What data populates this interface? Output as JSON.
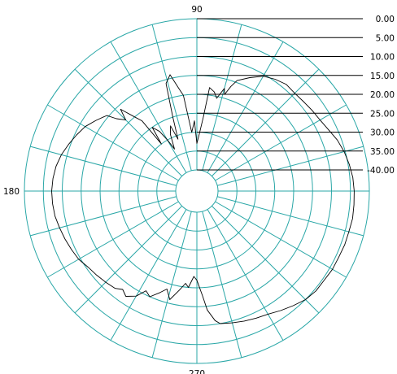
{
  "chart_data": {
    "type": "polar",
    "title": "",
    "radial_scale": {
      "ticks": [
        "0.00",
        "5.00",
        "10.00",
        "15.00",
        "20.00",
        "25.00",
        "30.00",
        "35.00",
        "-40.00"
      ],
      "levels": [
        0,
        -5,
        -10,
        -15,
        -20,
        -25,
        -30,
        -35,
        -40
      ],
      "outer": 0,
      "center": -40
    },
    "angle_labels": [
      {
        "angle": 90,
        "text": "90"
      },
      {
        "angle": 180,
        "text": "180"
      },
      {
        "angle": 270,
        "text": "270"
      }
    ],
    "angular_grid_step_deg": 15,
    "grid": true,
    "series": [
      {
        "points": [
          {
            "angle": 0,
            "value": -4.0
          },
          {
            "angle": 5,
            "value": -4.2
          },
          {
            "angle": 10,
            "value": -4.7
          },
          {
            "angle": 15,
            "value": -5.3
          },
          {
            "angle": 20,
            "value": -6.1
          },
          {
            "angle": 25,
            "value": -7.2
          },
          {
            "angle": 30,
            "value": -8.0
          },
          {
            "angle": 35,
            "value": -8.4
          },
          {
            "angle": 40,
            "value": -8.8
          },
          {
            "angle": 45,
            "value": -9.0
          },
          {
            "angle": 50,
            "value": -8.8
          },
          {
            "angle": 55,
            "value": -9.5
          },
          {
            "angle": 60,
            "value": -10.5
          },
          {
            "angle": 65,
            "value": -12.5
          },
          {
            "angle": 70,
            "value": -14.5
          },
          {
            "angle": 72,
            "value": -16.5
          },
          {
            "angle": 74,
            "value": -19.0
          },
          {
            "angle": 75,
            "value": -17.5
          },
          {
            "angle": 78,
            "value": -20.5
          },
          {
            "angle": 80,
            "value": -19.0
          },
          {
            "angle": 83,
            "value": -18.0
          },
          {
            "angle": 85,
            "value": -26.0
          },
          {
            "angle": 88,
            "value": -31.0
          },
          {
            "angle": 90,
            "value": -33.0
          },
          {
            "angle": 92,
            "value": -27.0
          },
          {
            "angle": 95,
            "value": -30.0
          },
          {
            "angle": 98,
            "value": -20.0
          },
          {
            "angle": 100,
            "value": -18.0
          },
          {
            "angle": 103,
            "value": -14.0
          },
          {
            "angle": 106,
            "value": -16.0
          },
          {
            "angle": 108,
            "value": -25.0
          },
          {
            "angle": 110,
            "value": -31.0
          },
          {
            "angle": 112,
            "value": -27.0
          },
          {
            "angle": 115,
            "value": -29.0
          },
          {
            "angle": 118,
            "value": -33.0
          },
          {
            "angle": 120,
            "value": -30.0
          },
          {
            "angle": 122,
            "value": -27.0
          },
          {
            "angle": 125,
            "value": -25.0
          },
          {
            "angle": 127,
            "value": -30.0
          },
          {
            "angle": 128,
            "value": -22.0
          },
          {
            "angle": 130,
            "value": -20.0
          },
          {
            "angle": 133,
            "value": -16.0
          },
          {
            "angle": 135,
            "value": -19.0
          },
          {
            "angle": 138,
            "value": -17.0
          },
          {
            "angle": 140,
            "value": -14.5
          },
          {
            "angle": 145,
            "value": -13.0
          },
          {
            "angle": 150,
            "value": -11.5
          },
          {
            "angle": 155,
            "value": -10.5
          },
          {
            "angle": 160,
            "value": -9.5
          },
          {
            "angle": 165,
            "value": -8.5
          },
          {
            "angle": 170,
            "value": -7.8
          },
          {
            "angle": 175,
            "value": -7.4
          },
          {
            "angle": 180,
            "value": -7.2
          },
          {
            "angle": 185,
            "value": -7.3
          },
          {
            "angle": 190,
            "value": -7.5
          },
          {
            "angle": 195,
            "value": -8.0
          },
          {
            "angle": 200,
            "value": -8.5
          },
          {
            "angle": 205,
            "value": -9.0
          },
          {
            "angle": 210,
            "value": -9.5
          },
          {
            "angle": 215,
            "value": -10.5
          },
          {
            "angle": 220,
            "value": -11.0
          },
          {
            "angle": 225,
            "value": -11.5
          },
          {
            "angle": 230,
            "value": -12.0
          },
          {
            "angle": 233,
            "value": -13.0
          },
          {
            "angle": 236,
            "value": -12.0
          },
          {
            "angle": 240,
            "value": -13.5
          },
          {
            "angle": 243,
            "value": -16.0
          },
          {
            "angle": 246,
            "value": -15.0
          },
          {
            "angle": 250,
            "value": -17.0
          },
          {
            "angle": 253,
            "value": -18.5
          },
          {
            "angle": 256,
            "value": -16.0
          },
          {
            "angle": 260,
            "value": -19.0
          },
          {
            "angle": 263,
            "value": -21.0
          },
          {
            "angle": 265,
            "value": -20.0
          },
          {
            "angle": 268,
            "value": -23.0
          },
          {
            "angle": 270,
            "value": -22.0
          },
          {
            "angle": 273,
            "value": -18.0
          },
          {
            "angle": 275,
            "value": -14.0
          },
          {
            "angle": 278,
            "value": -11.0
          },
          {
            "angle": 280,
            "value": -10.0
          },
          {
            "angle": 285,
            "value": -9.5
          },
          {
            "angle": 290,
            "value": -9.0
          },
          {
            "angle": 295,
            "value": -8.5
          },
          {
            "angle": 300,
            "value": -8.0
          },
          {
            "angle": 305,
            "value": -7.0
          },
          {
            "angle": 310,
            "value": -6.0
          },
          {
            "angle": 315,
            "value": -5.0
          },
          {
            "angle": 320,
            "value": -4.5
          },
          {
            "angle": 325,
            "value": -4.5
          },
          {
            "angle": 330,
            "value": -4.2
          },
          {
            "angle": 335,
            "value": -4.2
          },
          {
            "angle": 340,
            "value": -4.0
          },
          {
            "angle": 345,
            "value": -4.0
          },
          {
            "angle": 350,
            "value": -3.8
          },
          {
            "angle": 355,
            "value": -3.9
          }
        ]
      }
    ],
    "colors": {
      "grid": "#2aa7a7",
      "trace": "#000000",
      "reference_lines": "#000000"
    }
  }
}
